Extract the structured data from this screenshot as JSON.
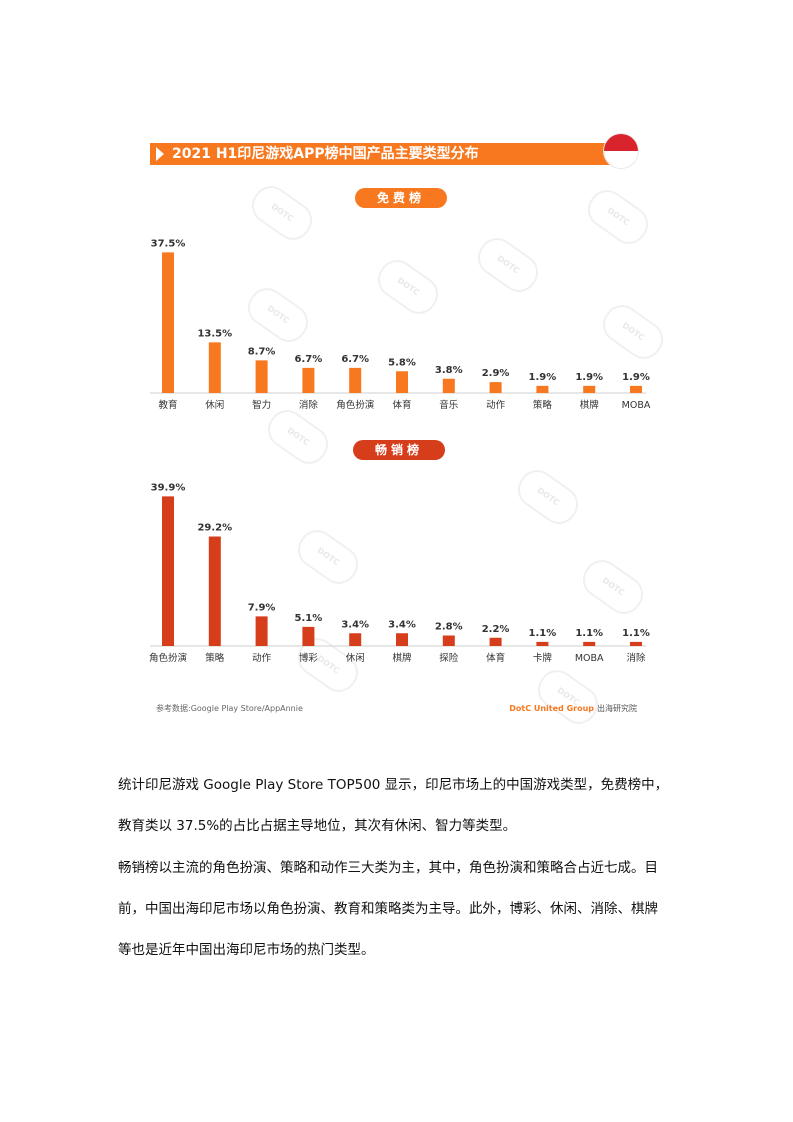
{
  "title": "2021 H1印尼游戏APP榜中国产品主要类型分布",
  "charts": {
    "free_label": "免费榜",
    "grossing_label": "畅销榜"
  },
  "source": {
    "left": "参考数据:Google Play Store/AppAnnie",
    "brand": "DotC United Group",
    "institute": "出海研究院"
  },
  "colors": {
    "free": "#f7781e",
    "grossing": "#d63d1b",
    "title_bar": "#f7781e"
  },
  "chart_data": [
    {
      "type": "bar",
      "title": "免费榜",
      "categories": [
        "教育",
        "休闲",
        "智力",
        "消除",
        "角色扮演",
        "体育",
        "音乐",
        "动作",
        "策略",
        "棋牌",
        "MOBA"
      ],
      "values": [
        37.5,
        13.5,
        8.7,
        6.7,
        6.7,
        5.8,
        3.8,
        2.9,
        1.9,
        1.9,
        1.9
      ],
      "value_labels": [
        "37.5%",
        "13.5%",
        "8.7%",
        "6.7%",
        "6.7%",
        "5.8%",
        "3.8%",
        "2.9%",
        "1.9%",
        "1.9%",
        "1.9%"
      ],
      "unit": "%",
      "ylim": [
        0,
        40
      ],
      "grid": false,
      "color": "#f7781e"
    },
    {
      "type": "bar",
      "title": "畅销榜",
      "categories": [
        "角色扮演",
        "策略",
        "动作",
        "博彩",
        "休闲",
        "棋牌",
        "探险",
        "体育",
        "卡牌",
        "MOBA",
        "消除"
      ],
      "values": [
        39.9,
        29.2,
        7.9,
        5.1,
        3.4,
        3.4,
        2.8,
        2.2,
        1.1,
        1.1,
        1.1
      ],
      "value_labels": [
        "39.9%",
        "29.2%",
        "7.9%",
        "5.1%",
        "3.4%",
        "3.4%",
        "2.8%",
        "2.2%",
        "1.1%",
        "1.1%",
        "1.1%"
      ],
      "unit": "%",
      "ylim": [
        0,
        40
      ],
      "grid": false,
      "color": "#d63d1b"
    }
  ],
  "paragraphs": {
    "p1a": "统计印尼游戏 Google Play Store TOP500 显示，印尼市场上的中国游戏类型，免费榜中，",
    "p1b": "教育类以 37.5%的占比占据主导地位，其次有休闲、智力等类型。",
    "p2a": "畅销榜以主流的角色扮演、策略和动作三大类为主，其中，角色扮演和策略合占近七成。目",
    "p2b": "前，中国出海印尼市场以角色扮演、教育和策略类为主导。此外，博彩、休闲、消除、棋牌",
    "p2c": "等也是近年中国出海印尼市场的热门类型。"
  }
}
